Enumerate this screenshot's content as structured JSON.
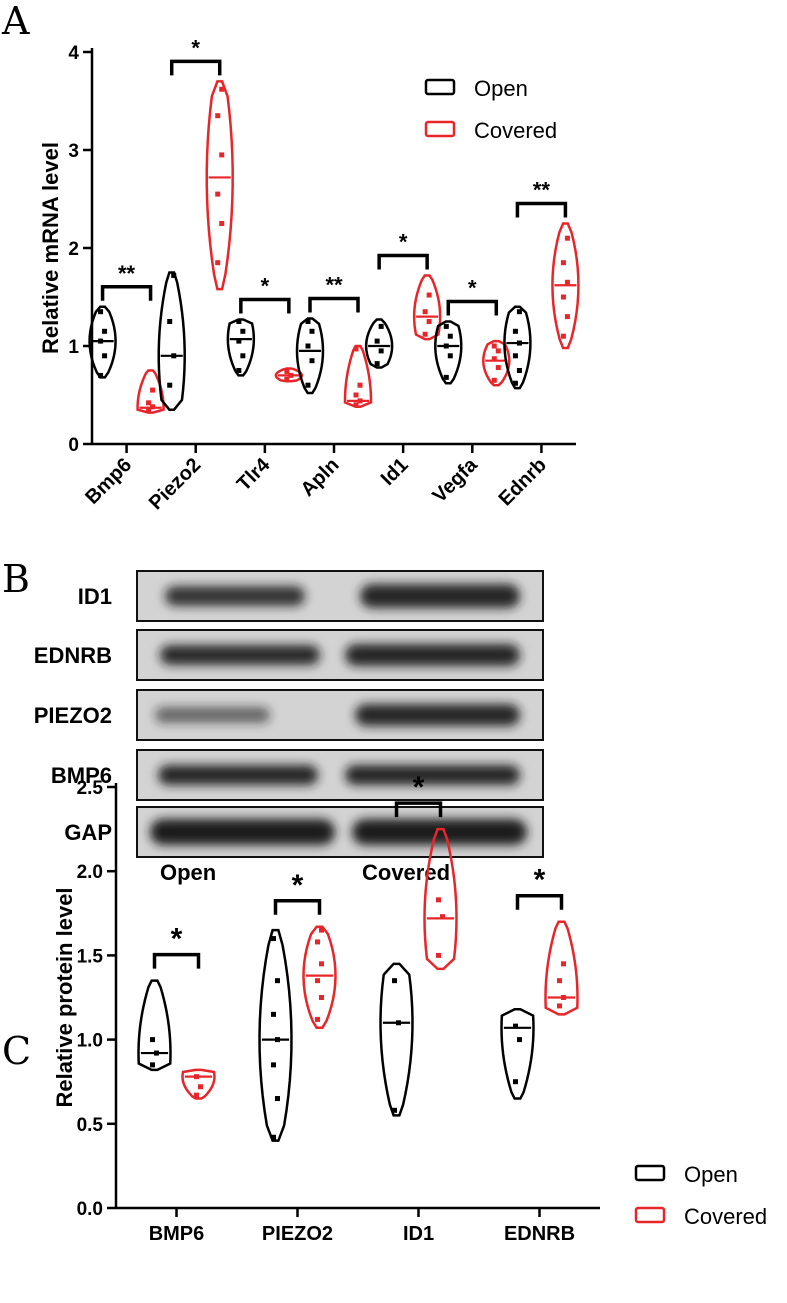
{
  "panels": {
    "a_letter": "A",
    "b_letter": "B",
    "c_letter": "C"
  },
  "colors": {
    "open": "#000000",
    "covered": "#e8262a"
  },
  "western_blot": {
    "bands": [
      "ID1",
      "EDNRB",
      "PIEZO2",
      "BMP6",
      "GAP"
    ],
    "lanes": [
      "Open",
      "Covered"
    ]
  },
  "chart_data": [
    {
      "type": "violin",
      "panel": "A",
      "ylabel": "Relative mRNA level",
      "ylim": [
        0,
        4
      ],
      "yticks": [
        "0",
        "1",
        "2",
        "3",
        "4"
      ],
      "categories": [
        "Bmp6",
        "Piezo2",
        "Tlr4",
        "Apln",
        "Id1",
        "Vegfa",
        "Ednrb"
      ],
      "legend": {
        "position": "top-right",
        "entries": [
          "Open",
          "Covered"
        ]
      },
      "series": [
        {
          "name": "Open",
          "groups": [
            {
              "min": 0.68,
              "max": 1.4,
              "median": 1.05,
              "points": [
                0.7,
                0.9,
                1.05,
                1.15,
                1.35
              ]
            },
            {
              "min": 0.35,
              "max": 1.75,
              "median": 0.9,
              "points": [
                0.6,
                0.9,
                1.25,
                1.72
              ]
            },
            {
              "min": 0.7,
              "max": 1.27,
              "median": 1.07,
              "points": [
                0.75,
                0.9,
                1.05,
                1.15,
                1.25
              ]
            },
            {
              "min": 0.52,
              "max": 1.28,
              "median": 0.95,
              "points": [
                0.6,
                0.85,
                1.0,
                1.15,
                1.25
              ]
            },
            {
              "min": 0.78,
              "max": 1.27,
              "median": 1.0,
              "points": [
                0.82,
                0.95,
                1.05,
                1.2
              ]
            },
            {
              "min": 0.62,
              "max": 1.25,
              "median": 1.0,
              "points": [
                0.68,
                0.9,
                1.0,
                1.1,
                1.2
              ]
            },
            {
              "min": 0.57,
              "max": 1.4,
              "median": 1.03,
              "points": [
                0.62,
                0.75,
                0.9,
                1.03,
                1.15,
                1.35
              ]
            }
          ]
        },
        {
          "name": "Covered",
          "groups": [
            {
              "min": 0.32,
              "max": 0.75,
              "median": 0.37,
              "points": [
                0.35,
                0.38,
                0.42,
                0.55
              ]
            },
            {
              "min": 1.58,
              "max": 3.7,
              "median": 2.72,
              "points": [
                1.85,
                2.25,
                2.55,
                2.95,
                3.35,
                3.62
              ]
            },
            {
              "min": 0.64,
              "max": 0.77,
              "median": 0.7,
              "points": [
                0.66,
                0.7,
                0.74
              ]
            },
            {
              "min": 0.38,
              "max": 1.0,
              "median": 0.44,
              "points": [
                0.4,
                0.44,
                0.5,
                0.6,
                0.97
              ]
            },
            {
              "min": 1.07,
              "max": 1.72,
              "median": 1.3,
              "points": [
                1.12,
                1.25,
                1.35,
                1.52
              ]
            },
            {
              "min": 0.6,
              "max": 1.05,
              "median": 0.85,
              "points": [
                0.65,
                0.78,
                0.87,
                0.95,
                1.0
              ]
            },
            {
              "min": 0.98,
              "max": 2.25,
              "median": 1.62,
              "points": [
                1.1,
                1.3,
                1.5,
                1.65,
                1.85,
                2.1
              ]
            }
          ]
        }
      ],
      "significance": [
        "**",
        "*",
        "*",
        "**",
        "*",
        "*",
        "**"
      ]
    },
    {
      "type": "violin",
      "panel": "C",
      "ylabel": "Relative protein level",
      "ylim": [
        0,
        2.5
      ],
      "yticks": [
        "0.0",
        "0.5",
        "1.0",
        "1.5",
        "2.0",
        "2.5"
      ],
      "categories": [
        "BMP6",
        "PIEZO2",
        "ID1",
        "EDNRB"
      ],
      "legend": {
        "position": "bottom-right",
        "entries": [
          "Open",
          "Covered"
        ]
      },
      "series": [
        {
          "name": "Open",
          "groups": [
            {
              "min": 0.82,
              "max": 1.35,
              "median": 0.92,
              "points": [
                0.85,
                0.92,
                1.0
              ]
            },
            {
              "min": 0.4,
              "max": 1.65,
              "median": 1.0,
              "points": [
                0.42,
                0.65,
                0.85,
                1.0,
                1.15,
                1.35,
                1.6
              ]
            },
            {
              "min": 0.55,
              "max": 1.45,
              "median": 1.1,
              "points": [
                0.58,
                1.1,
                1.35
              ]
            },
            {
              "min": 0.65,
              "max": 1.18,
              "median": 1.07,
              "points": [
                0.75,
                1.0,
                1.08
              ]
            }
          ]
        },
        {
          "name": "Covered",
          "groups": [
            {
              "min": 0.65,
              "max": 0.82,
              "median": 0.78,
              "points": [
                0.67,
                0.72,
                0.78
              ]
            },
            {
              "min": 1.07,
              "max": 1.67,
              "median": 1.38,
              "points": [
                1.12,
                1.25,
                1.35,
                1.45,
                1.58,
                1.65
              ]
            },
            {
              "min": 1.42,
              "max": 2.25,
              "median": 1.72,
              "points": [
                1.5,
                1.73,
                1.83
              ]
            },
            {
              "min": 1.15,
              "max": 1.7,
              "median": 1.25,
              "points": [
                1.2,
                1.25,
                1.35,
                1.45
              ]
            }
          ]
        }
      ],
      "significance": [
        "*",
        "*",
        "*",
        "*"
      ]
    }
  ]
}
